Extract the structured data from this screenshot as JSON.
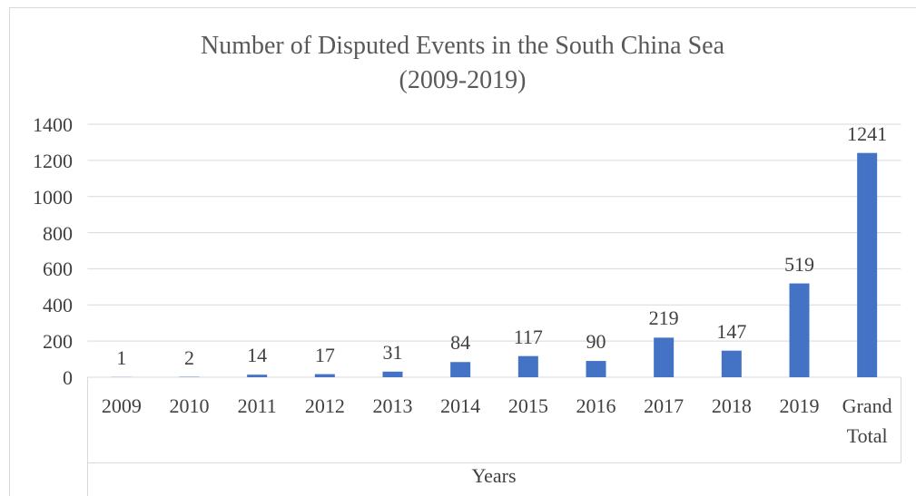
{
  "chart_data": {
    "type": "bar",
    "title": "Number of Disputed Events in the South China Sea",
    "subtitle": "(2009-2019)",
    "x_label": "Years",
    "categories": [
      "2009",
      "2010",
      "2011",
      "2012",
      "2013",
      "2014",
      "2015",
      "2016",
      "2017",
      "2018",
      "2019",
      "Grand Total"
    ],
    "values": [
      1,
      2,
      14,
      17,
      31,
      84,
      117,
      90,
      219,
      147,
      519,
      1241
    ],
    "color": "#4472c4",
    "ylim": [
      0,
      1400
    ],
    "yticks": [
      0,
      200,
      400,
      600,
      800,
      1000,
      1200,
      1400
    ],
    "grid": true
  }
}
